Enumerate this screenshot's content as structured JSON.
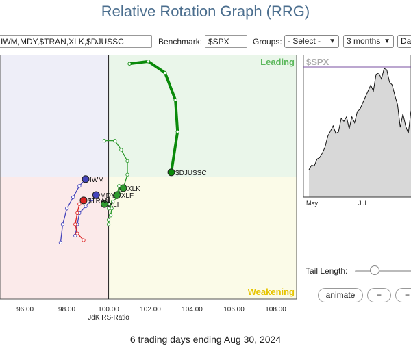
{
  "page": {
    "title": "Relative Rotation Graph (RRG)",
    "footer": "6 trading days ending Aug 30, 2024"
  },
  "controls": {
    "symbols_value": "IWM,MDY,$TRAN,XLK,$DJUSSC",
    "benchmark_label": "Benchmark:",
    "benchmark_value": "$SPX",
    "groups_label": "Groups:",
    "groups_value": "- Select -",
    "period_value": "3 months",
    "frequency_value": "Dai",
    "tail_length_label": "Tail Length:",
    "tail_length_value": 0.3,
    "animate_label": "animate",
    "plus_label": "+",
    "minus_label": "−"
  },
  "colors": {
    "leading": "#eaf6ea",
    "improving": "#eeeef8",
    "lagging": "#fbeaea",
    "weakening": "#fbfbe8",
    "leading_label": "#5cb85c",
    "weakening_label": "#e6c400"
  },
  "chart_data": {
    "type": "scatter",
    "xlabel": "JdK RS-Ratio",
    "ylabel": "",
    "x_ticks": [
      "96.00",
      "98.00",
      "100.00",
      "102.00",
      "104.00",
      "106.00",
      "108.00"
    ],
    "xlim": [
      94.8,
      109
    ],
    "ylim": [
      97.3,
      102.7
    ],
    "quadrants": {
      "leading": "Leading",
      "weakening": "Weakening"
    },
    "series": [
      {
        "name": "$DJUSSC",
        "color": "#0a8a0a",
        "thick": true,
        "points": [
          [
            101.0,
            102.5
          ],
          [
            101.9,
            102.55
          ],
          [
            102.7,
            102.3
          ],
          [
            103.2,
            101.7
          ],
          [
            103.3,
            101.0
          ],
          [
            103.0,
            100.1
          ]
        ]
      },
      {
        "name": "XLK",
        "color": "#2e9a2e",
        "points": [
          [
            99.8,
            100.8
          ],
          [
            100.3,
            100.8
          ],
          [
            100.6,
            100.6
          ],
          [
            100.9,
            100.35
          ],
          [
            100.9,
            100.05
          ],
          [
            100.7,
            99.75
          ]
        ]
      },
      {
        "name": "XLF",
        "color": "#2e9a2e",
        "points": [
          [
            100.0,
            99.3
          ],
          [
            100.2,
            99.45
          ],
          [
            100.4,
            99.55
          ],
          [
            100.5,
            99.65
          ],
          [
            100.5,
            99.8
          ],
          [
            100.4,
            99.6
          ]
        ]
      },
      {
        "name": "XLI",
        "color": "#2e9a2e",
        "points": [
          [
            100.0,
            98.95
          ],
          [
            100.0,
            99.05
          ],
          [
            100.1,
            99.15
          ],
          [
            100.15,
            99.3
          ],
          [
            100.05,
            99.4
          ],
          [
            99.8,
            99.4
          ]
        ]
      },
      {
        "name": "IWM",
        "color": "#4444bb",
        "points": [
          [
            97.7,
            98.55
          ],
          [
            97.8,
            98.95
          ],
          [
            98.0,
            99.3
          ],
          [
            98.3,
            99.55
          ],
          [
            98.6,
            99.8
          ],
          [
            98.9,
            99.95
          ]
        ]
      },
      {
        "name": "MDY",
        "color": "#4444bb",
        "points": [
          [
            98.4,
            98.7
          ],
          [
            98.5,
            98.95
          ],
          [
            98.6,
            99.2
          ],
          [
            98.9,
            99.35
          ],
          [
            99.2,
            99.5
          ],
          [
            99.4,
            99.6
          ]
        ]
      },
      {
        "name": "$TRAN",
        "color": "#dd2222",
        "points": [
          [
            98.8,
            98.6
          ],
          [
            98.5,
            98.75
          ],
          [
            98.4,
            98.95
          ],
          [
            98.5,
            99.2
          ],
          [
            98.6,
            99.4
          ],
          [
            98.8,
            99.48
          ]
        ]
      }
    ],
    "labels": [
      {
        "text": "$DJUSSC",
        "series": "$DJUSSC"
      },
      {
        "text": "XLK",
        "series": "XLK"
      },
      {
        "text": "XLF",
        "series": "XLF"
      },
      {
        "text": "XLI",
        "series": "XLI"
      },
      {
        "text": "IWM",
        "series": "IWM"
      },
      {
        "text": "MDY",
        "series": "MDY"
      },
      {
        "text": "$TRAN",
        "series": "$TRAN"
      }
    ],
    "price_chart": {
      "title": "$SPX",
      "x_ticks": [
        "May",
        "Jul"
      ],
      "values": [
        4960,
        4990,
        4985,
        5030,
        5040,
        5070,
        5110,
        5180,
        5215,
        5250,
        5200,
        5210,
        5300,
        5280,
        5310,
        5230,
        5310,
        5270,
        5345,
        5360,
        5400,
        5440,
        5480,
        5520,
        5480,
        5590,
        5600,
        5560,
        5630,
        5620,
        5540,
        5520,
        5450,
        5390,
        5240,
        5330,
        5250,
        5200,
        5350
      ]
    }
  }
}
